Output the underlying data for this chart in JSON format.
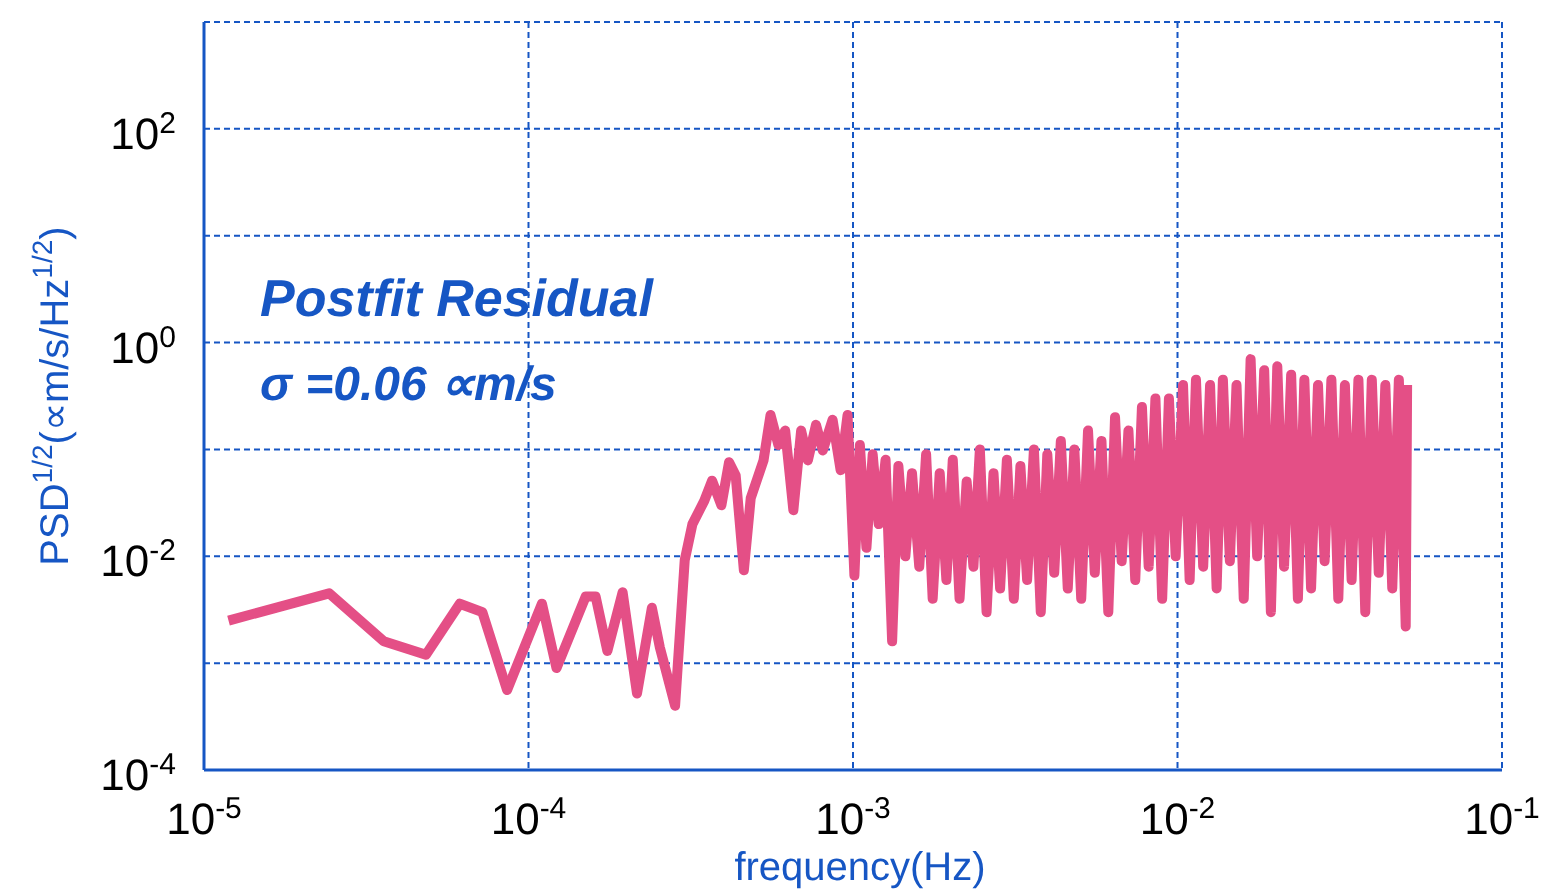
{
  "chart_data": {
    "type": "line",
    "xlabel": "frequency(Hz)",
    "ylabel": "PSD$^{1/2}$(∝m/s/Hz$^{1/2}$)",
    "annotations": [
      "Postfit Residual",
      "σ =0.06 ∝m/s"
    ],
    "log": "xy",
    "grid": true,
    "marker": "none",
    "line_style": "solid",
    "color": "#e44f86",
    "xlim": [
      1e-05,
      0.1
    ],
    "ylim": [
      0.0001,
      1000
    ],
    "xticks": [
      {
        "value": 1e-05,
        "label": "10$^{-5}$"
      },
      {
        "value": 0.0001,
        "label": "10$^{-4}$"
      },
      {
        "value": 0.001,
        "label": "10$^{-3}$"
      },
      {
        "value": 0.01,
        "label": "10$^{-2}$"
      },
      {
        "value": 0.1,
        "label": "10$^{-1}$"
      }
    ],
    "yticks": [
      {
        "value": 0.0001,
        "label": "10$^{-4}$"
      },
      {
        "value": 0.001,
        "label": null
      },
      {
        "value": 0.01,
        "label": "10$^{-2}$"
      },
      {
        "value": 0.1,
        "label": null
      },
      {
        "value": 1,
        "label": "10$^{0}$"
      },
      {
        "value": 10,
        "label": null
      },
      {
        "value": 100,
        "label": "10$^{2}$"
      },
      {
        "value": 1000,
        "label": null
      }
    ],
    "x": [
      1.19e-05,
      2.43e-05,
      3.58e-05,
      4.83e-05,
      6.14e-05,
      7.21e-05,
      8.59e-05,
      0.00011,
      0.000122,
      0.00015,
      0.000161,
      0.000175,
      0.000195,
      0.000216,
      0.00024,
      0.000254,
      0.000283,
      0.000303,
      0.00032,
      0.000348,
      0.000368,
      0.000393,
      0.000415,
      0.000435,
      0.000461,
      0.000484,
      0.00053,
      0.000557,
      0.000589,
      0.000618,
      0.000655,
      0.000692,
      0.000726,
      0.000769,
      0.000807,
      0.000865,
      0.000916,
      0.000962,
      0.00101,
      0.00105,
      0.0011,
      0.00115,
      0.0012,
      0.00126,
      0.00132,
      0.00138,
      0.00145,
      0.00152,
      0.0016,
      0.00168,
      0.00176,
      0.00185,
      0.00194,
      0.00203,
      0.00213,
      0.00224,
      0.00235,
      0.00246,
      0.00258,
      0.00271,
      0.00284,
      0.00298,
      0.00313,
      0.00328,
      0.00344,
      0.00361,
      0.00379,
      0.00397,
      0.00417,
      0.00437,
      0.00459,
      0.00481,
      0.00505,
      0.0053,
      0.00556,
      0.00583,
      0.00612,
      0.00642,
      0.00673,
      0.00706,
      0.00741,
      0.00777,
      0.00815,
      0.00855,
      0.00897,
      0.00941,
      0.00987,
      0.0104,
      0.0109,
      0.0114,
      0.012,
      0.0126,
      0.0132,
      0.0138,
      0.0145,
      0.0152,
      0.016,
      0.0168,
      0.0176,
      0.0185,
      0.0194,
      0.0203,
      0.0213,
      0.0224,
      0.0235,
      0.0246,
      0.0258,
      0.0271,
      0.0284,
      0.0298,
      0.0313,
      0.0328,
      0.0344,
      0.0361,
      0.0379,
      0.0397,
      0.0417,
      0.0437,
      0.0459,
      0.0481,
      0.0505,
      0.051
    ],
    "values": [
      0.0025,
      0.0045,
      0.0016,
      0.0012,
      0.0036,
      0.003,
      0.00056,
      0.0036,
      0.0009,
      0.0042,
      0.0042,
      0.0013,
      0.0046,
      0.00052,
      0.0033,
      0.0014,
      0.0004,
      0.0092,
      0.02,
      0.033,
      0.051,
      0.03,
      0.076,
      0.057,
      0.0074,
      0.035,
      0.079,
      0.21,
      0.11,
      0.15,
      0.027,
      0.15,
      0.079,
      0.17,
      0.098,
      0.19,
      0.064,
      0.21,
      0.0066,
      0.11,
      0.012,
      0.09,
      0.02,
      0.08,
      0.0016,
      0.07,
      0.01,
      0.06,
      0.008,
      0.09,
      0.004,
      0.06,
      0.006,
      0.08,
      0.004,
      0.05,
      0.008,
      0.1,
      0.003,
      0.06,
      0.005,
      0.08,
      0.004,
      0.07,
      0.006,
      0.1,
      0.003,
      0.09,
      0.007,
      0.12,
      0.005,
      0.1,
      0.004,
      0.15,
      0.007,
      0.12,
      0.003,
      0.2,
      0.009,
      0.15,
      0.006,
      0.25,
      0.008,
      0.3,
      0.004,
      0.3,
      0.01,
      0.4,
      0.006,
      0.45,
      0.008,
      0.4,
      0.005,
      0.45,
      0.009,
      0.4,
      0.004,
      0.7,
      0.01,
      0.55,
      0.003,
      0.6,
      0.008,
      0.5,
      0.004,
      0.45,
      0.005,
      0.4,
      0.009,
      0.45,
      0.004,
      0.4,
      0.006,
      0.45,
      0.003,
      0.45,
      0.007,
      0.4,
      0.005,
      0.45,
      0.0022,
      0.4
    ]
  }
}
